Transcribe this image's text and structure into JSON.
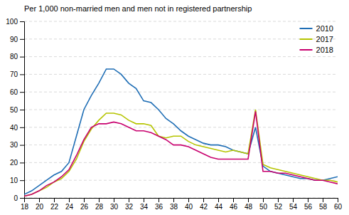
{
  "chart_data": {
    "type": "line",
    "title": "Per 1,000 non-married men and men not in registered partnership",
    "x": [
      18,
      19,
      20,
      21,
      22,
      23,
      24,
      25,
      26,
      27,
      28,
      29,
      30,
      31,
      32,
      33,
      34,
      35,
      36,
      37,
      38,
      39,
      40,
      41,
      42,
      43,
      44,
      45,
      46,
      47,
      48,
      49,
      50,
      51,
      52,
      53,
      54,
      55,
      56,
      57,
      58,
      59,
      60
    ],
    "series": [
      {
        "name": "2010",
        "color": "#1f6eb5",
        "values": [
          2,
          4,
          7,
          10,
          13,
          15,
          20,
          35,
          50,
          58,
          65,
          73,
          73,
          70,
          65,
          62,
          55,
          54,
          50,
          45,
          42,
          38,
          35,
          33,
          31,
          30,
          30,
          29,
          27,
          26,
          25,
          40,
          18,
          15,
          14,
          13,
          12,
          11,
          11,
          10,
          10,
          11,
          12
        ]
      },
      {
        "name": "2017",
        "color": "#b5c400",
        "values": [
          1,
          2,
          4,
          6,
          9,
          11,
          15,
          22,
          32,
          39,
          44,
          48,
          48,
          47,
          44,
          42,
          42,
          41,
          35,
          34,
          35,
          35,
          32,
          30,
          29,
          28,
          27,
          26,
          27,
          26,
          25,
          50,
          19,
          17,
          16,
          15,
          14,
          13,
          12,
          11,
          10,
          10,
          9
        ]
      },
      {
        "name": "2018",
        "color": "#c8006e",
        "values": [
          1,
          2,
          4,
          7,
          9,
          12,
          16,
          24,
          33,
          40,
          42,
          42,
          43,
          42,
          40,
          38,
          38,
          37,
          35,
          33,
          30,
          30,
          29,
          27,
          25,
          23,
          22,
          22,
          22,
          22,
          22,
          49,
          15,
          15,
          14,
          14,
          13,
          12,
          11,
          10,
          10,
          9,
          8
        ]
      }
    ],
    "xlim": [
      18,
      60
    ],
    "ylim": [
      0,
      100
    ],
    "xticks": [
      18,
      20,
      22,
      24,
      26,
      28,
      30,
      32,
      34,
      36,
      38,
      40,
      42,
      44,
      46,
      48,
      50,
      52,
      54,
      56,
      58,
      60
    ],
    "yticks": [
      0,
      10,
      20,
      30,
      40,
      50,
      60,
      70,
      80,
      90,
      100
    ],
    "grid": true,
    "legend": "upper right"
  }
}
